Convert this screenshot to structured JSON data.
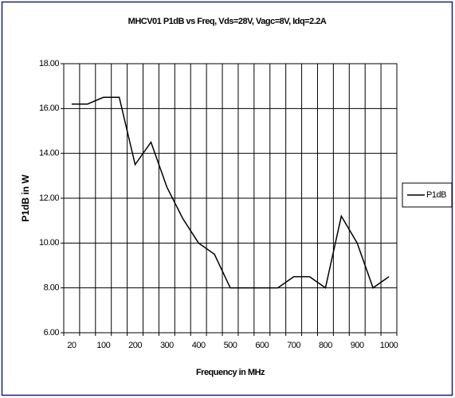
{
  "chart_data": {
    "type": "line",
    "title": "MHCV01 P1dB vs Freq, Vds=28V, Vagc=8V, Idq=2.2A",
    "x_label": "Frequency in MHz",
    "y_label": "P1dB in W",
    "categories": [
      "20",
      null,
      "100",
      null,
      "200",
      null,
      "300",
      null,
      "400",
      null,
      "500",
      null,
      "600",
      null,
      "700",
      null,
      "800",
      null,
      "900",
      null,
      "1000"
    ],
    "series": [
      {
        "name": "P1dB",
        "color": "#000000",
        "values": [
          16.2,
          16.2,
          16.5,
          16.5,
          13.5,
          14.5,
          12.5,
          11.1,
          10.0,
          9.5,
          8.0,
          8.0,
          8.0,
          8.0,
          8.5,
          8.5,
          8.0,
          11.2,
          10.0,
          8.0,
          8.5
        ]
      }
    ],
    "ylim": [
      6,
      18
    ],
    "yticks": [
      {
        "value": 6,
        "label": "6.00"
      },
      {
        "value": 8,
        "label": "8.00"
      },
      {
        "value": 10,
        "label": "10.00"
      },
      {
        "value": 12,
        "label": "12.00"
      },
      {
        "value": 14,
        "label": "14.00"
      },
      {
        "value": 16,
        "label": "16.00"
      },
      {
        "value": 18,
        "label": "18.00"
      }
    ],
    "grid": true,
    "legend": "right"
  }
}
